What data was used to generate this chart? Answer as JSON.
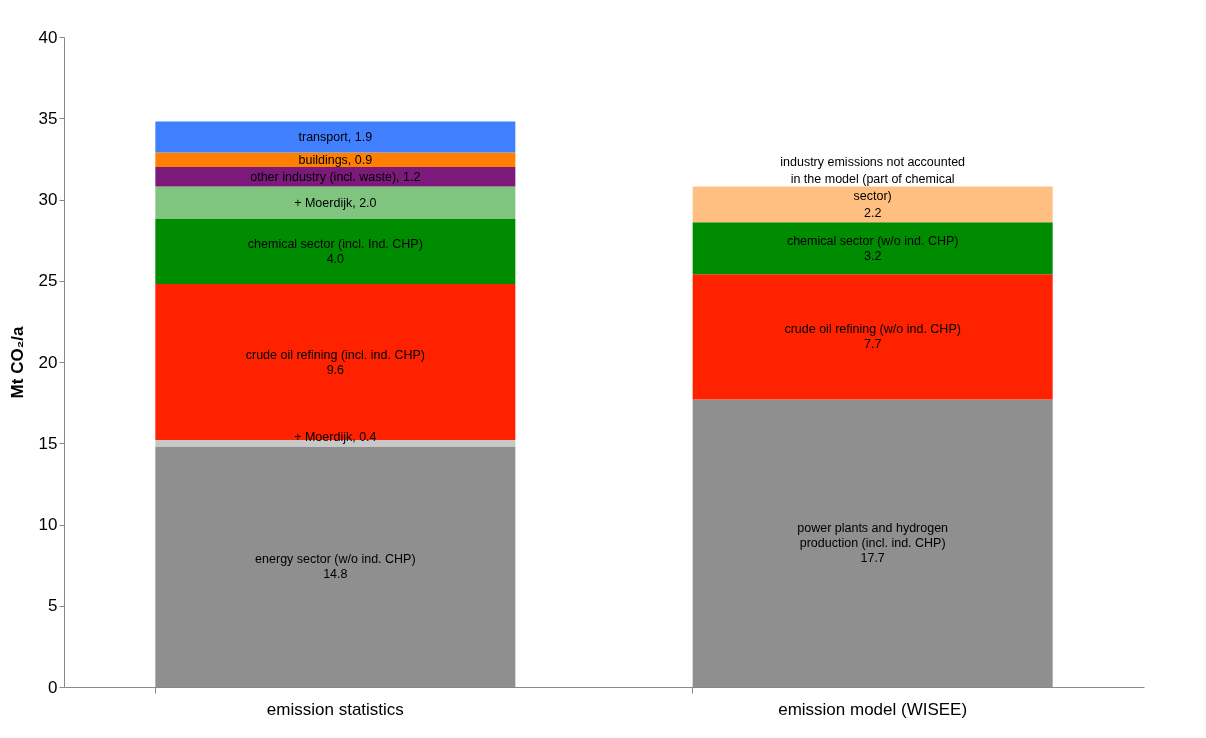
{
  "chart_data": {
    "type": "bar",
    "stacked": true,
    "ylabel": "Mt CO₂/a",
    "categories": [
      "emission statistics",
      "emission model (WISEE)"
    ],
    "ylim": [
      0,
      40
    ],
    "yticks": [
      0,
      5,
      10,
      15,
      20,
      25,
      30,
      35,
      40
    ],
    "grid": false,
    "series": [
      {
        "color": "#8f8f8f",
        "values": [
          14.8,
          17.7
        ],
        "value_labels": [
          "energy sector (w/o ind. CHP)\n14.8",
          "power plants and hydrogen\nproduction (incl. ind. CHP)\n17.7"
        ]
      },
      {
        "color": "#c8c8c8",
        "values": [
          0.4,
          null
        ],
        "value_labels": [
          "+ Moerdijk, 0.4",
          null
        ]
      },
      {
        "color": "#ff2200",
        "values": [
          9.6,
          7.7
        ],
        "value_labels": [
          "crude oil refining (incl. ind. CHP)\n9.6",
          "crude oil refining (w/o ind. CHP)\n7.7"
        ]
      },
      {
        "color": "#008c00",
        "values": [
          4.0,
          3.2
        ],
        "value_labels": [
          "chemical sector (incl. Ind. CHP)\n4.0",
          "chemical sector (w/o ind. CHP)\n3.2"
        ]
      },
      {
        "color": "#7fc57f",
        "values": [
          2.0,
          null
        ],
        "value_labels": [
          "+ Moerdijk, 2.0",
          null
        ]
      },
      {
        "color": "#ffbf80",
        "values": [
          null,
          2.2
        ],
        "value_labels": [
          null,
          "industry emissions not accounted\nin the model (part of chemical\nsector)\n2.2"
        ]
      },
      {
        "color": "#7b1a7b",
        "values": [
          1.2,
          null
        ],
        "value_labels": [
          "other industry (incl. waste), 1.2",
          null
        ]
      },
      {
        "color": "#ff7f00",
        "values": [
          0.9,
          null
        ],
        "value_labels": [
          "buildings, 0.9",
          null
        ]
      },
      {
        "color": "#4080ff",
        "values": [
          1.9,
          null
        ],
        "value_labels": [
          "transport, 1.9",
          null
        ]
      }
    ]
  }
}
